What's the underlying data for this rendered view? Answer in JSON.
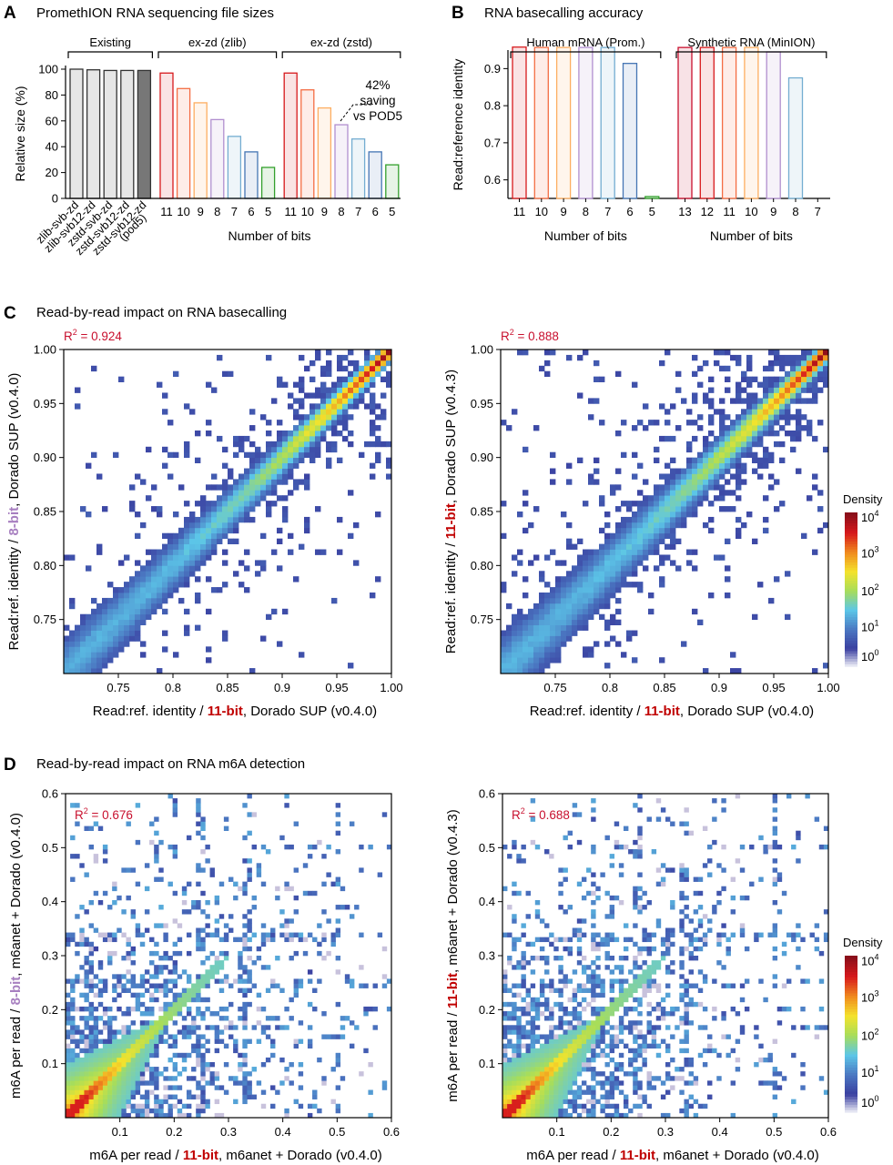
{
  "panels": {
    "A": {
      "letter": "A",
      "title": "PromethION RNA sequencing file sizes"
    },
    "B": {
      "letter": "B",
      "title": "RNA basecalling accuracy"
    },
    "C": {
      "letter": "C",
      "title": "Read-by-read impact on RNA basecalling"
    },
    "D": {
      "letter": "D",
      "title": "Read-by-read impact on RNA m6A detection"
    }
  },
  "colors": {
    "bit13": "#c8102e",
    "bit11": "#d7191c",
    "bit10": "#f46d43",
    "bit9": "#fdae61",
    "bit8": "#b18fcf",
    "bit7": "#74add1",
    "bit6": "#4575b4",
    "bit5": "#33a02c",
    "existing": "#e5e5e5",
    "pod5": "#777777",
    "r2": "#c8102e",
    "highlight": "#c00000",
    "lavender": "#a77fc0"
  },
  "chart_data": [
    {
      "id": "A",
      "type": "bar",
      "title": "PromethION RNA sequencing file sizes",
      "ylabel": "Relative size (%)",
      "xlabel": "Number of bits",
      "ylim": [
        0,
        100
      ],
      "yticks": [
        0,
        20,
        40,
        60,
        80,
        100
      ],
      "groups": [
        "Existing",
        "ex-zd (zlib)",
        "ex-zd (zstd)"
      ],
      "annotation": [
        "42%",
        "saving",
        "vs POD5"
      ],
      "bars": [
        {
          "label": "zlib-svb-zd",
          "value": 100,
          "color": "existing"
        },
        {
          "label": "zlib-svb12-zd",
          "value": 99.5,
          "color": "existing"
        },
        {
          "label": "zstd-svb-zd",
          "value": 99,
          "color": "existing"
        },
        {
          "label": "zstd-svb12-zd",
          "value": 99,
          "color": "existing"
        },
        {
          "label": "zstd-svb12-zd (pod5)",
          "value": 99,
          "color": "pod5"
        },
        {
          "label": "11",
          "value": 97,
          "color": "bit11"
        },
        {
          "label": "10",
          "value": 85,
          "color": "bit10"
        },
        {
          "label": "9",
          "value": 74,
          "color": "bit9"
        },
        {
          "label": "8",
          "value": 61,
          "color": "bit8"
        },
        {
          "label": "7",
          "value": 48,
          "color": "bit7"
        },
        {
          "label": "6",
          "value": 36,
          "color": "bit6"
        },
        {
          "label": "5",
          "value": 24,
          "color": "bit5"
        },
        {
          "label": "11",
          "value": 97,
          "color": "bit11"
        },
        {
          "label": "10",
          "value": 84,
          "color": "bit10"
        },
        {
          "label": "9",
          "value": 70,
          "color": "bit9"
        },
        {
          "label": "8",
          "value": 57,
          "color": "bit8"
        },
        {
          "label": "7",
          "value": 46,
          "color": "bit7"
        },
        {
          "label": "6",
          "value": 36,
          "color": "bit6"
        },
        {
          "label": "5",
          "value": 26,
          "color": "bit5"
        }
      ],
      "xticklabels_rotated": [
        "zlib-svb-zd",
        "zlib-svb12-zd",
        "zstd-svb-zd",
        "zstd-svb12-zd",
        "zstd-svb12-zd",
        "(pod5)"
      ]
    },
    {
      "id": "B",
      "type": "bar",
      "title": "RNA basecalling accuracy",
      "ylabel": "Read:reference identity",
      "ylim": [
        0.55,
        0.95
      ],
      "yticks": [
        0.6,
        0.7,
        0.8,
        0.9
      ],
      "groups": [
        {
          "name": "Human mRNA (Prom.)",
          "xlabel": "Number of bits",
          "categories": [
            "11",
            "10",
            "9",
            "8",
            "7",
            "6",
            "5"
          ],
          "values": [
            0.958,
            0.957,
            0.957,
            0.957,
            0.957,
            0.914,
            0.555
          ],
          "colors": [
            "bit11",
            "bit10",
            "bit9",
            "bit8",
            "bit7",
            "bit6",
            "bit5"
          ]
        },
        {
          "name": "Synthetic RNA (MinION)",
          "xlabel": "Number of bits",
          "categories": [
            "13",
            "12",
            "11",
            "10",
            "9",
            "8",
            "7"
          ],
          "values": [
            0.957,
            0.957,
            0.957,
            0.957,
            0.945,
            0.875,
            null
          ],
          "colors": [
            "bit13",
            "bit11",
            "bit10",
            "bit9",
            "bit8",
            "bit7",
            "bit6"
          ]
        }
      ]
    },
    {
      "id": "C1",
      "type": "heatmap",
      "r2_label": "R",
      "r2_value": "= 0.924",
      "xlabel": {
        "pre": "Read:ref. identity / ",
        "hi": "11-bit",
        "post": ", Dorado SUP (v0.4.0)"
      },
      "ylabel": {
        "pre": "Read:ref. identity / ",
        "hi": "8-bit",
        "post": ", Dorado SUP (v0.4.0)"
      },
      "xlim": [
        0.7,
        1.0
      ],
      "ylim": [
        0.7,
        1.0
      ],
      "xticks": [
        "0.75",
        "0.8",
        "0.85",
        "0.9",
        "0.95",
        "1.00"
      ],
      "yticks": [
        "0.75",
        "0.80",
        "0.85",
        "0.90",
        "0.95",
        "1.00"
      ]
    },
    {
      "id": "C2",
      "type": "heatmap",
      "r2_label": "R",
      "r2_value": "= 0.888",
      "xlabel": {
        "pre": "Read:ref. identity / ",
        "hi": "11-bit",
        "post": ", Dorado SUP (v0.4.0)"
      },
      "ylabel": {
        "pre": "Read:ref. identity / ",
        "hi": "11-bit",
        "post": ", Dorado SUP (v0.4.3)"
      },
      "xlim": [
        0.7,
        1.0
      ],
      "ylim": [
        0.7,
        1.0
      ],
      "xticks": [
        "0.75",
        "0.8",
        "0.85",
        "0.9",
        "0.95",
        "1.00"
      ],
      "yticks": [
        "0.75",
        "0.80",
        "0.85",
        "0.90",
        "0.95",
        "1.00"
      ]
    },
    {
      "id": "D1",
      "type": "heatmap",
      "r2_label": "R",
      "r2_value": "= 0.676",
      "xlabel": {
        "pre": "m6A per read / ",
        "hi": "11-bit",
        "post": ", m6anet + Dorado (v0.4.0)"
      },
      "ylabel": {
        "pre": "m6A per read / ",
        "hi": "8-bit",
        "post": ", m6anet + Dorado (v0.4.0)"
      },
      "xlim": [
        0,
        0.6
      ],
      "ylim": [
        0,
        0.6
      ],
      "xticks": [
        "0.1",
        "0.2",
        "0.3",
        "0.4",
        "0.5",
        "0.6"
      ],
      "yticks": [
        "0.1",
        "0.2",
        "0.3",
        "0.4",
        "0.5",
        "0.6"
      ]
    },
    {
      "id": "D2",
      "type": "heatmap",
      "r2_label": "R",
      "r2_value": "= 0.688",
      "xlabel": {
        "pre": "m6A per read / ",
        "hi": "11-bit",
        "post": ", m6anet + Dorado (v0.4.0)"
      },
      "ylabel": {
        "pre": "m6A per read / ",
        "hi": "11-bit",
        "post": ", m6anet + Dorado (v0.4.3)"
      },
      "xlim": [
        0,
        0.6
      ],
      "ylim": [
        0,
        0.6
      ],
      "xticks": [
        "0.1",
        "0.2",
        "0.3",
        "0.4",
        "0.5",
        "0.6"
      ],
      "yticks": [
        "0.1",
        "0.2",
        "0.3",
        "0.4",
        "0.5",
        "0.6"
      ]
    }
  ],
  "colorbar": {
    "title": "Density",
    "ticks": [
      {
        "base": "10",
        "exp": "4"
      },
      {
        "base": "10",
        "exp": "3"
      },
      {
        "base": "10",
        "exp": "2"
      },
      {
        "base": "10",
        "exp": "1"
      },
      {
        "base": "10",
        "exp": "0"
      }
    ],
    "stops": [
      "#ffffff",
      "#3a3fa0",
      "#4b78c2",
      "#5cc6e8",
      "#a7dd5a",
      "#f4e32c",
      "#f08a1e",
      "#d7191c",
      "#8a0f1a"
    ]
  }
}
